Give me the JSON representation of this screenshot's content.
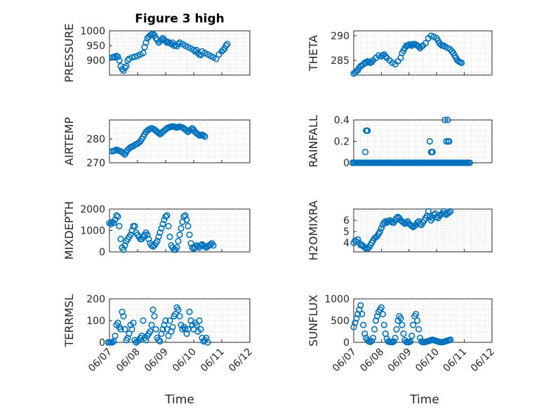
{
  "figure": {
    "title": "Figure 3 high",
    "xlabel": "Time",
    "xticks": [
      "06/07",
      "06/08",
      "06/09",
      "06/10",
      "06/11",
      "06/12"
    ],
    "marker_color": "#0072BD",
    "marker": "circle-open"
  },
  "chart_data": [
    {
      "type": "scatter",
      "name": "PRESSURE",
      "ylabel": "PRESSURE",
      "ylim": [
        850,
        1000
      ],
      "yticks": [
        900,
        950,
        1000
      ],
      "grid": true,
      "x": [
        7.1,
        7.15,
        7.2,
        7.25,
        7.3,
        7.35,
        7.4,
        7.45,
        7.5,
        7.55,
        7.6,
        7.65,
        7.7,
        7.8,
        7.9,
        8.0,
        8.1,
        8.2,
        8.25,
        8.3,
        8.35,
        8.4,
        8.45,
        8.5,
        8.55,
        8.6,
        8.65,
        8.7,
        8.75,
        8.8,
        8.85,
        8.9,
        8.95,
        9.0,
        9.05,
        9.1,
        9.15,
        9.2,
        9.25,
        9.3,
        9.35,
        9.4,
        9.45,
        9.5,
        9.6,
        9.7,
        9.8,
        9.9,
        10.0,
        10.05,
        10.1,
        10.15,
        10.2,
        10.25,
        10.3,
        10.4,
        10.5,
        10.6,
        10.7,
        10.8,
        10.9,
        11.0,
        11.05,
        11.1,
        11.15,
        11.2
      ],
      "y": [
        910,
        912,
        910,
        915,
        912,
        900,
        880,
        870,
        865,
        875,
        880,
        900,
        905,
        910,
        912,
        915,
        920,
        925,
        945,
        960,
        975,
        980,
        985,
        988,
        990,
        985,
        975,
        970,
        960,
        965,
        970,
        975,
        970,
        965,
        960,
        962,
        958,
        955,
        960,
        950,
        952,
        948,
        955,
        960,
        955,
        950,
        945,
        940,
        935,
        930,
        935,
        925,
        920,
        918,
        930,
        925,
        920,
        915,
        910,
        905,
        920,
        930,
        935,
        940,
        950,
        955
      ]
    },
    {
      "type": "scatter",
      "name": "THETA",
      "ylabel": "THETA",
      "ylim": [
        282,
        291
      ],
      "yticks": [
        285,
        290
      ],
      "grid": true,
      "x": [
        7.0,
        7.05,
        7.1,
        7.15,
        7.2,
        7.25,
        7.3,
        7.35,
        7.4,
        7.45,
        7.5,
        7.55,
        7.6,
        7.65,
        7.7,
        7.8,
        7.9,
        8.0,
        8.05,
        8.1,
        8.15,
        8.2,
        8.3,
        8.4,
        8.5,
        8.6,
        8.7,
        8.75,
        8.8,
        8.85,
        8.9,
        8.95,
        9.0,
        9.05,
        9.1,
        9.15,
        9.2,
        9.25,
        9.3,
        9.35,
        9.4,
        9.45,
        9.5,
        9.6,
        9.7,
        9.8,
        9.9,
        10.0,
        10.05,
        10.1,
        10.15,
        10.2,
        10.25,
        10.3,
        10.4,
        10.5,
        10.55,
        10.6,
        10.65,
        10.7,
        10.75,
        10.8,
        10.85,
        10.9
      ],
      "y": [
        282.3,
        282.5,
        282.8,
        283.0,
        283.5,
        283.8,
        284.0,
        284.2,
        284.5,
        284.5,
        284.8,
        284.7,
        284.5,
        284.6,
        285.0,
        285.5,
        286.0,
        285.8,
        286.0,
        286.2,
        285.8,
        285.5,
        285.0,
        284.5,
        284.2,
        284.8,
        285.5,
        286.5,
        287.0,
        287.5,
        288.0,
        288.0,
        288.2,
        288.2,
        288.0,
        288.3,
        288.3,
        288.2,
        288.0,
        287.8,
        287.5,
        287.8,
        288.0,
        288.5,
        289.5,
        290.0,
        289.8,
        289.5,
        289.0,
        288.5,
        288.2,
        288.0,
        288.0,
        287.8,
        287.5,
        287.2,
        286.8,
        286.5,
        286.0,
        285.5,
        285.0,
        284.8,
        284.6,
        284.5
      ]
    },
    {
      "type": "scatter",
      "name": "AIR_TEMP",
      "ylabel": "AIR_TEMP",
      "ylim": [
        270,
        288
      ],
      "yticks": [
        270,
        280
      ],
      "grid": true,
      "x": [
        7.1,
        7.15,
        7.2,
        7.25,
        7.3,
        7.35,
        7.4,
        7.45,
        7.5,
        7.55,
        7.6,
        7.65,
        7.7,
        7.75,
        7.8,
        7.85,
        7.9,
        7.95,
        8.0,
        8.05,
        8.1,
        8.15,
        8.2,
        8.25,
        8.3,
        8.35,
        8.4,
        8.45,
        8.5,
        8.55,
        8.6,
        8.65,
        8.7,
        8.75,
        8.8,
        8.85,
        8.9,
        8.95,
        9.0,
        9.05,
        9.1,
        9.15,
        9.2,
        9.25,
        9.3,
        9.35,
        9.4,
        9.45,
        9.5,
        9.55,
        9.6,
        9.65,
        9.7,
        9.75,
        9.8,
        9.85,
        9.9,
        9.95,
        10.0,
        10.05,
        10.1,
        10.15,
        10.2,
        10.25,
        10.3,
        10.35,
        10.4
      ],
      "y": [
        274.8,
        275.0,
        275.2,
        275.5,
        275.3,
        275.0,
        274.8,
        274.5,
        274.0,
        273.5,
        274.5,
        275.5,
        276.0,
        276.5,
        276.8,
        277.0,
        277.5,
        277.8,
        278.0,
        278.5,
        279.0,
        280.0,
        281.0,
        282.0,
        283.0,
        283.5,
        284.0,
        284.3,
        284.5,
        284.3,
        284.0,
        283.5,
        283.0,
        282.5,
        282.0,
        282.5,
        283.0,
        283.5,
        284.0,
        284.5,
        284.8,
        285.0,
        285.2,
        285.3,
        285.2,
        285.0,
        284.8,
        285.0,
        285.2,
        285.0,
        284.8,
        284.5,
        284.0,
        283.5,
        283.0,
        283.5,
        284.0,
        284.5,
        283.8,
        283.0,
        282.5,
        282.0,
        281.5,
        281.5,
        281.8,
        281.5,
        281.0
      ]
    },
    {
      "type": "scatter",
      "name": "RAINFALL",
      "ylabel": "RAINFALL",
      "ylim": [
        0,
        0.4
      ],
      "yticks": [
        0,
        0.2,
        0.4
      ],
      "grid": true,
      "x": [
        6.95,
        7.0,
        7.05,
        7.1,
        7.15,
        7.2,
        7.25,
        7.3,
        7.35,
        7.4,
        7.45,
        7.5,
        7.55,
        7.6,
        7.65,
        7.7,
        7.75,
        7.8,
        7.85,
        7.9,
        7.95,
        8.0,
        8.05,
        8.1,
        8.15,
        8.2,
        8.25,
        8.3,
        8.35,
        8.4,
        8.45,
        8.5,
        8.55,
        8.6,
        8.65,
        8.7,
        8.75,
        8.8,
        8.85,
        8.9,
        8.95,
        9.0,
        9.05,
        9.1,
        9.15,
        9.2,
        9.25,
        9.3,
        9.35,
        9.4,
        9.45,
        9.5,
        9.55,
        9.6,
        9.65,
        9.7,
        9.75,
        9.8,
        9.85,
        9.9,
        9.95,
        10.0,
        10.05,
        10.1,
        10.15,
        10.2,
        10.25,
        10.3,
        10.35,
        10.4,
        10.45,
        10.5,
        10.55,
        10.6,
        10.65,
        10.7,
        10.75,
        10.8,
        10.85,
        10.9,
        10.95,
        11.0,
        11.05,
        11.1,
        11.15,
        11.2,
        7.45,
        7.47,
        7.5,
        7.42,
        9.75,
        9.8,
        9.82,
        9.85,
        10.3,
        10.35,
        10.4,
        10.42,
        10.45
      ],
      "y": [
        0,
        0,
        0,
        0,
        0,
        0,
        0,
        0,
        0,
        0,
        0,
        0,
        0,
        0,
        0,
        0,
        0,
        0,
        0,
        0,
        0,
        0,
        0,
        0,
        0,
        0,
        0,
        0,
        0,
        0,
        0,
        0,
        0,
        0,
        0,
        0,
        0,
        0,
        0,
        0,
        0,
        0,
        0,
        0,
        0,
        0,
        0,
        0,
        0,
        0,
        0,
        0,
        0,
        0,
        0,
        0,
        0,
        0,
        0,
        0,
        0,
        0,
        0,
        0,
        0,
        0,
        0,
        0,
        0,
        0,
        0,
        0,
        0,
        0,
        0,
        0,
        0,
        0,
        0,
        0,
        0,
        0,
        0,
        0,
        0,
        0,
        0.3,
        0.3,
        0.3,
        0.1,
        0.2,
        0.1,
        0.1,
        0.1,
        0.4,
        0.2,
        0.4,
        0.2,
        0.2
      ]
    },
    {
      "type": "scatter",
      "name": "MIXDEPTH",
      "ylabel": "MIXDEPTH",
      "ylim": [
        0,
        2000
      ],
      "yticks": [
        0,
        1000,
        2000
      ],
      "grid": true,
      "x": [
        7.0,
        7.05,
        7.1,
        7.15,
        7.2,
        7.25,
        7.3,
        7.35,
        7.4,
        7.45,
        7.5,
        7.55,
        7.6,
        7.65,
        7.7,
        7.75,
        7.8,
        7.85,
        7.9,
        7.95,
        8.0,
        8.05,
        8.1,
        8.15,
        8.2,
        8.25,
        8.3,
        8.35,
        8.4,
        8.45,
        8.5,
        8.55,
        8.6,
        8.65,
        8.7,
        8.75,
        8.8,
        8.85,
        8.9,
        8.95,
        9.0,
        9.05,
        9.1,
        9.15,
        9.2,
        9.25,
        9.3,
        9.35,
        9.4,
        9.45,
        9.5,
        9.55,
        9.6,
        9.65,
        9.7,
        9.75,
        9.8,
        9.85,
        9.9,
        9.95,
        10.0,
        10.05,
        10.1,
        10.15,
        10.2,
        10.25,
        10.3,
        10.35,
        10.4,
        10.45,
        10.5,
        10.55,
        10.6,
        10.65,
        10.7
      ],
      "y": [
        1350,
        1300,
        1400,
        1350,
        1500,
        1700,
        1650,
        1200,
        600,
        200,
        100,
        300,
        500,
        600,
        700,
        800,
        1000,
        1200,
        1200,
        900,
        800,
        700,
        600,
        600,
        700,
        800,
        900,
        800,
        600,
        400,
        300,
        250,
        300,
        400,
        500,
        700,
        900,
        1100,
        1300,
        1500,
        1650,
        1700,
        1200,
        700,
        300,
        200,
        100,
        100,
        200,
        500,
        800,
        1100,
        1400,
        1650,
        1700,
        1500,
        1200,
        800,
        400,
        200,
        150,
        200,
        300,
        250,
        200,
        300,
        350,
        300,
        250,
        200,
        250,
        300,
        350,
        400,
        300
      ]
    },
    {
      "type": "scatter",
      "name": "H2OMIXRA",
      "ylabel": "H2OMIXRA",
      "ylim": [
        3.2,
        7
      ],
      "yticks": [
        4,
        5,
        6
      ],
      "grid": true,
      "x": [
        7.0,
        7.05,
        7.1,
        7.15,
        7.2,
        7.25,
        7.3,
        7.35,
        7.4,
        7.45,
        7.5,
        7.55,
        7.6,
        7.65,
        7.7,
        7.75,
        7.8,
        7.85,
        7.9,
        7.95,
        8.0,
        8.05,
        8.1,
        8.15,
        8.2,
        8.25,
        8.3,
        8.35,
        8.4,
        8.45,
        8.5,
        8.55,
        8.6,
        8.65,
        8.7,
        8.75,
        8.8,
        8.85,
        8.9,
        8.95,
        9.0,
        9.05,
        9.1,
        9.15,
        9.2,
        9.25,
        9.3,
        9.35,
        9.4,
        9.45,
        9.5,
        9.55,
        9.6,
        9.65,
        9.7,
        9.75,
        9.8,
        9.85,
        9.9,
        9.95,
        10.0,
        10.05,
        10.1,
        10.15,
        10.2,
        10.25,
        10.3,
        10.35,
        10.4,
        10.45,
        10.5
      ],
      "y": [
        4.0,
        4.2,
        4.1,
        4.3,
        4.0,
        3.8,
        3.8,
        3.7,
        3.6,
        3.5,
        3.5,
        3.6,
        3.8,
        4.0,
        4.2,
        4.4,
        4.5,
        4.6,
        4.8,
        5.0,
        5.3,
        5.6,
        5.8,
        5.9,
        5.8,
        5.9,
        6.0,
        5.9,
        5.8,
        5.8,
        6.0,
        6.2,
        6.3,
        6.2,
        6.0,
        5.9,
        5.8,
        5.7,
        5.8,
        5.9,
        5.7,
        5.6,
        5.5,
        5.4,
        5.5,
        5.6,
        5.8,
        5.9,
        5.7,
        5.6,
        5.8,
        6.0,
        6.2,
        6.4,
        6.8,
        6.3,
        6.0,
        6.2,
        6.5,
        6.6,
        6.3,
        6.2,
        6.4,
        6.5,
        6.6,
        6.8,
        6.6,
        6.5,
        6.6,
        6.7,
        6.8
      ]
    },
    {
      "type": "scatter",
      "name": "TERR_MSL",
      "ylabel": "TERR_MSL",
      "ylim": [
        0,
        200
      ],
      "yticks": [
        0,
        100,
        200
      ],
      "grid": true,
      "x": [
        6.95,
        7.0,
        7.05,
        7.1,
        7.15,
        7.2,
        7.25,
        7.3,
        7.35,
        7.4,
        7.45,
        7.5,
        7.55,
        7.6,
        7.65,
        7.7,
        7.75,
        7.8,
        7.85,
        7.9,
        7.95,
        8.0,
        8.05,
        8.1,
        8.15,
        8.2,
        8.25,
        8.3,
        8.35,
        8.4,
        8.45,
        8.5,
        8.55,
        8.6,
        8.65,
        8.7,
        8.75,
        8.8,
        8.85,
        8.9,
        8.95,
        9.0,
        9.05,
        9.1,
        9.15,
        9.2,
        9.25,
        9.3,
        9.35,
        9.4,
        9.45,
        9.5,
        9.55,
        9.6,
        9.65,
        9.7,
        9.75,
        9.8,
        9.85,
        9.9,
        9.95,
        10.0,
        10.05,
        10.1,
        10.15,
        10.2,
        10.25,
        10.3,
        10.35,
        10.4,
        10.45,
        10.5
      ],
      "y": [
        0,
        0,
        0,
        0,
        5,
        30,
        80,
        90,
        70,
        60,
        140,
        120,
        60,
        10,
        20,
        40,
        80,
        60,
        90,
        10,
        0,
        5,
        10,
        20,
        30,
        100,
        20,
        10,
        30,
        40,
        50,
        80,
        150,
        120,
        60,
        20,
        10,
        5,
        40,
        60,
        80,
        100,
        60,
        30,
        100,
        50,
        70,
        120,
        130,
        160,
        150,
        120,
        80,
        60,
        70,
        60,
        40,
        60,
        140,
        100,
        80,
        60,
        90,
        80,
        50,
        100,
        60,
        20,
        5,
        10,
        20,
        0
      ]
    },
    {
      "type": "scatter",
      "name": "SUN_FLUX",
      "ylabel": "SUN_FLUX",
      "ylim": [
        0,
        1000
      ],
      "yticks": [
        0,
        500,
        1000
      ],
      "grid": true,
      "x": [
        7.0,
        7.05,
        7.1,
        7.15,
        7.2,
        7.25,
        7.3,
        7.35,
        7.4,
        7.45,
        7.5,
        7.55,
        7.6,
        7.65,
        7.7,
        7.75,
        7.8,
        7.85,
        7.9,
        7.95,
        8.0,
        8.05,
        8.1,
        8.15,
        8.2,
        8.25,
        8.3,
        8.35,
        8.4,
        8.45,
        8.5,
        8.55,
        8.6,
        8.65,
        8.7,
        8.75,
        8.8,
        8.85,
        8.9,
        8.95,
        9.0,
        9.05,
        9.1,
        9.15,
        9.2,
        9.25,
        9.3,
        9.35,
        9.4,
        9.45,
        9.5,
        9.55,
        9.6,
        9.65,
        9.7,
        9.75,
        9.8,
        9.85,
        9.9,
        9.95,
        10.0,
        10.05,
        10.1,
        10.15,
        10.2,
        10.25,
        10.3,
        10.35,
        10.4,
        10.45,
        10.5
      ],
      "y": [
        350,
        450,
        550,
        650,
        750,
        850,
        650,
        400,
        200,
        100,
        50,
        20,
        10,
        30,
        100,
        300,
        500,
        600,
        700,
        750,
        800,
        650,
        400,
        200,
        80,
        20,
        10,
        10,
        5,
        20,
        100,
        300,
        500,
        600,
        550,
        400,
        200,
        50,
        10,
        5,
        5,
        20,
        150,
        400,
        600,
        650,
        500,
        300,
        100,
        20,
        5,
        5,
        10,
        20,
        30,
        40,
        50,
        60,
        50,
        40,
        30,
        20,
        10,
        5,
        5,
        10,
        20,
        30,
        40,
        50,
        60
      ]
    }
  ]
}
